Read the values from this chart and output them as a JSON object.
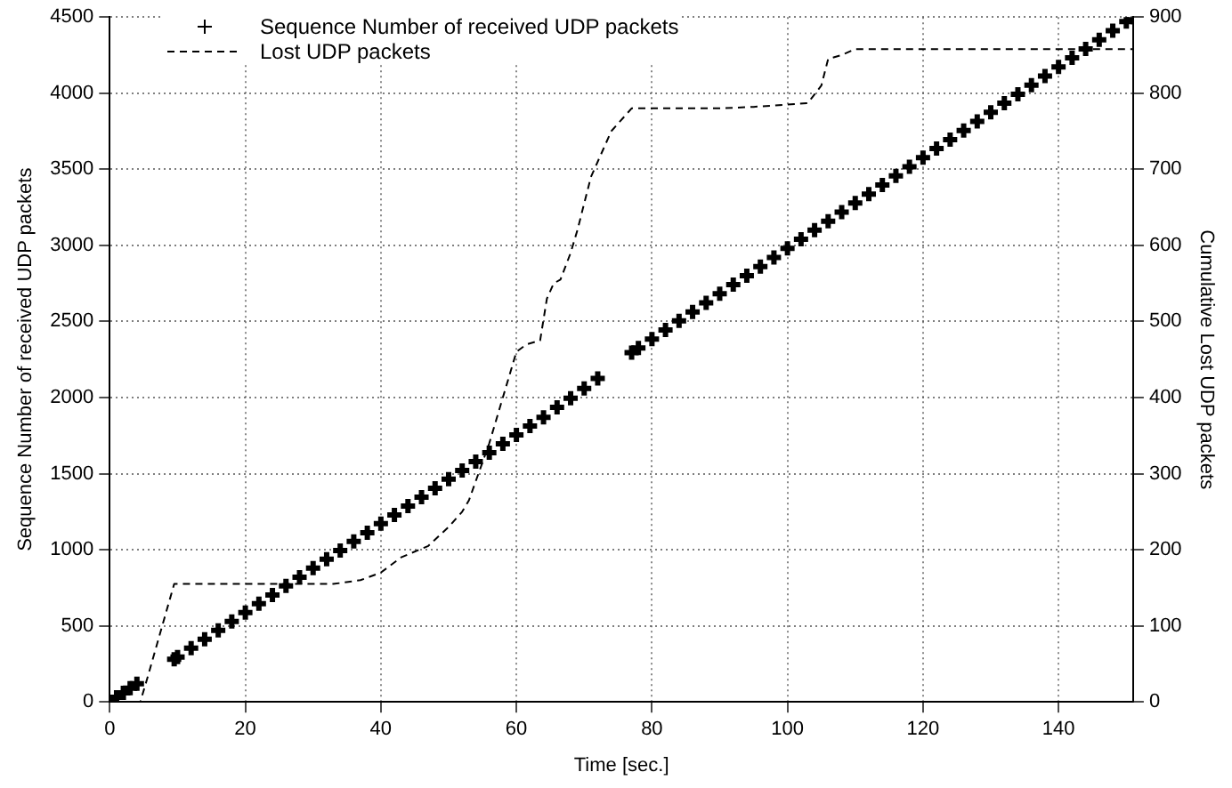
{
  "chart_data": {
    "type": "scatter",
    "xlabel": "Time [sec.]",
    "ylabel": "Sequence Number of received UDP packets",
    "y2label": "Cumulative Lost UDP packets",
    "xlim": [
      0,
      151
    ],
    "xticks": [
      0,
      20,
      40,
      60,
      80,
      100,
      120,
      140
    ],
    "ylim": [
      0,
      4500
    ],
    "yticks": [
      0,
      500,
      1000,
      1500,
      2000,
      2500,
      3000,
      3500,
      4000,
      4500
    ],
    "y2lim": [
      0,
      900
    ],
    "y2ticks": [
      0,
      100,
      200,
      300,
      400,
      500,
      600,
      700,
      800,
      900
    ],
    "grid": true,
    "legend": "top left",
    "series": [
      {
        "name": "Sequence Number of received UDP packets",
        "type": "scatter",
        "marker": "cross",
        "color": "#000000",
        "x": [
          0,
          1,
          2,
          3,
          4,
          9.5,
          10,
          12,
          14,
          16,
          18,
          20,
          22,
          24,
          26,
          28,
          30,
          32,
          34,
          36,
          38,
          40,
          42,
          44,
          46,
          48,
          50,
          52,
          54,
          56,
          58,
          60,
          62,
          64,
          66,
          68,
          70,
          72,
          77,
          78,
          80,
          82,
          84,
          86,
          88,
          90,
          92,
          94,
          96,
          98,
          100,
          102,
          104,
          106,
          108,
          110,
          112,
          114,
          116,
          118,
          120,
          122,
          124,
          126,
          128,
          130,
          132,
          134,
          136,
          138,
          140,
          142,
          144,
          146,
          148,
          150,
          151
        ],
        "values": [
          0,
          30,
          60,
          90,
          120,
          280,
          295,
          353,
          411,
          470,
          528,
          587,
          645,
          703,
          762,
          820,
          879,
          937,
          995,
          1054,
          1112,
          1171,
          1229,
          1287,
          1346,
          1404,
          1463,
          1521,
          1579,
          1638,
          1696,
          1755,
          1813,
          1870,
          1935,
          1995,
          2060,
          2125,
          2295,
          2325,
          2384,
          2444,
          2504,
          2563,
          2623,
          2682,
          2742,
          2801,
          2861,
          2920,
          2980,
          3040,
          3100,
          3159,
          3219,
          3278,
          3337,
          3397,
          3457,
          3516,
          3576,
          3636,
          3695,
          3755,
          3815,
          3874,
          3934,
          3993,
          4053,
          4112,
          4172,
          4232,
          4291,
          4351,
          4410,
          4470,
          4500
        ]
      },
      {
        "name": "Lost UDP packets",
        "type": "line",
        "axis": "y2",
        "line_style": "dashed",
        "marker": "none",
        "color": "#000000",
        "x": [
          0,
          4.5,
          5.5,
          9.5,
          33,
          37,
          40,
          43,
          47,
          50,
          52,
          53,
          56,
          59,
          60,
          61.5,
          63.5,
          64.5,
          65.5,
          66.5,
          68,
          69,
          71,
          74,
          77,
          80,
          90,
          95,
          100,
          103,
          105,
          106,
          108,
          110,
          151
        ],
        "values": [
          0,
          0,
          30,
          155,
          155,
          160,
          170,
          190,
          205,
          230,
          250,
          265,
          340,
          430,
          460,
          470,
          475,
          530,
          550,
          555,
          590,
          620,
          690,
          750,
          780,
          780,
          780,
          782,
          785,
          787,
          810,
          845,
          850,
          858,
          858
        ]
      }
    ]
  }
}
